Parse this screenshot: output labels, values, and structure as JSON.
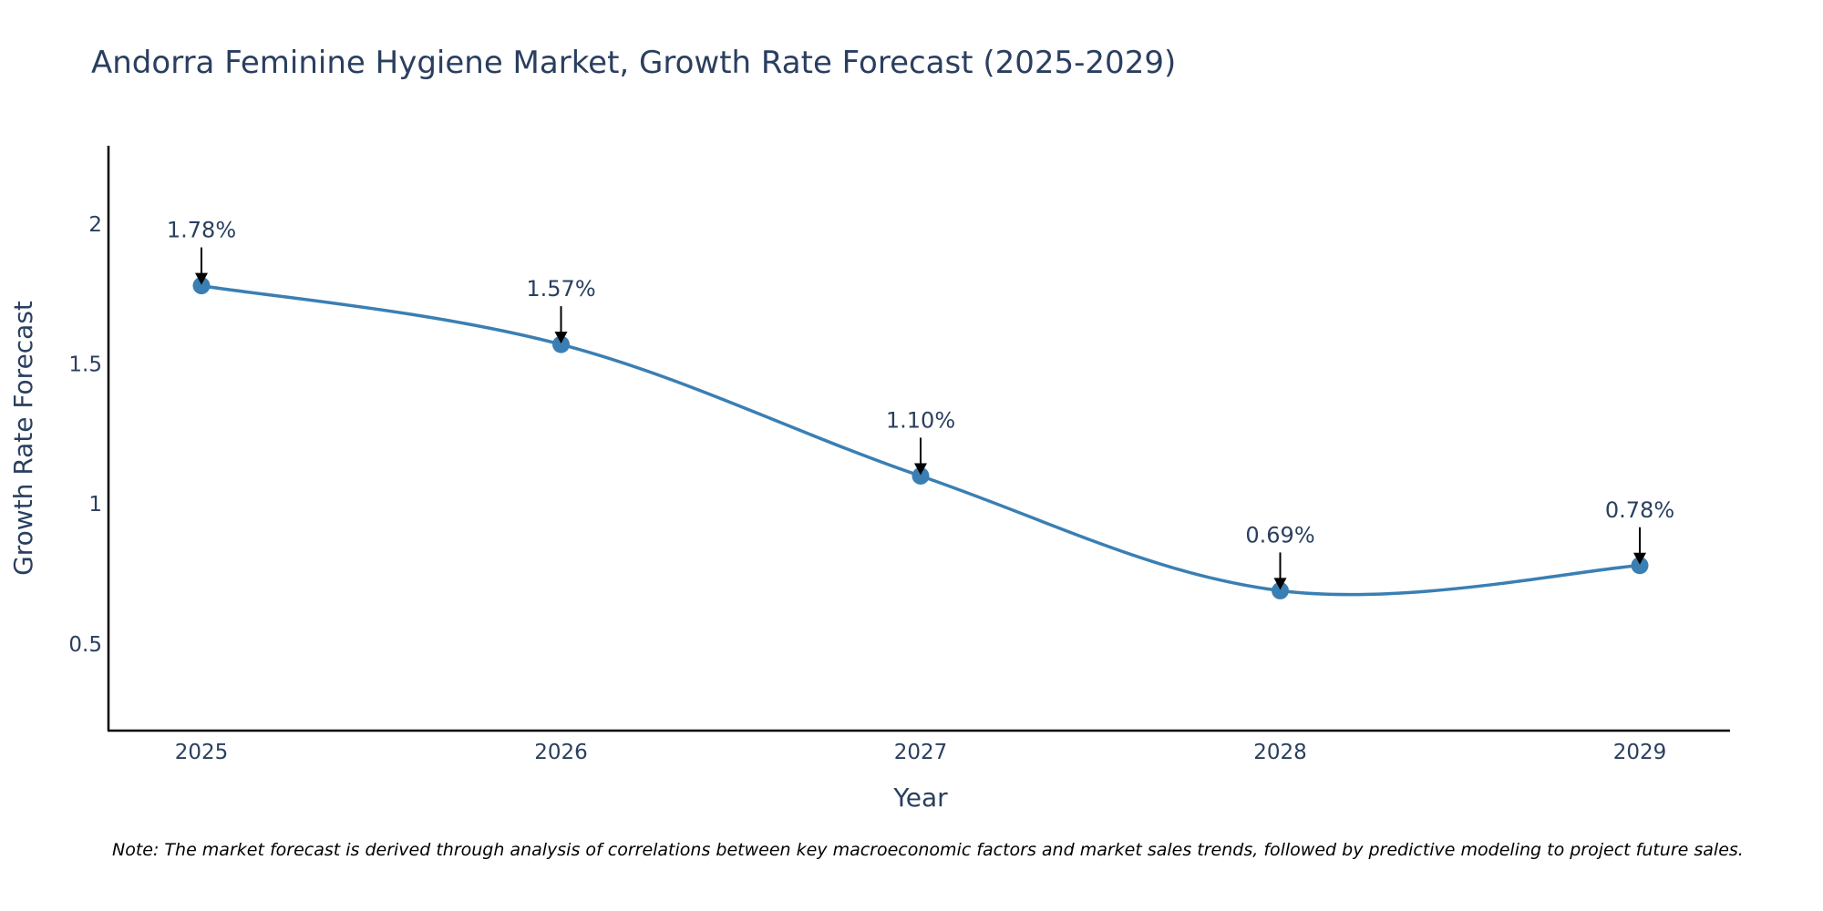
{
  "chart_data": {
    "type": "line",
    "title": "Andorra Feminine Hygiene Market, Growth Rate Forecast (2025-2029)",
    "xlabel": "Year",
    "ylabel": "Growth Rate Forecast",
    "categories": [
      "2025",
      "2026",
      "2027",
      "2028",
      "2029"
    ],
    "values": [
      1.78,
      1.57,
      1.1,
      0.69,
      0.78
    ],
    "data_labels": [
      "1.78%",
      "1.57%",
      "1.10%",
      "0.69%",
      "0.78%"
    ],
    "yticks": [
      0.5,
      1,
      1.5,
      2
    ],
    "ytick_labels": [
      "0.5",
      "1",
      "1.5",
      "2"
    ],
    "ylim": [
      0.19,
      2.28
    ],
    "grid": false,
    "line_shape": "spline",
    "colors": {
      "line": "#3a7fb3",
      "marker": "#3a7fb3",
      "axis": "#000000",
      "text": "#2a3f5f",
      "arrow": "#000000"
    }
  },
  "note": "Note: The market forecast is derived through analysis of correlations between key macroeconomic factors and market sales trends, followed by predictive modeling to project future sales."
}
